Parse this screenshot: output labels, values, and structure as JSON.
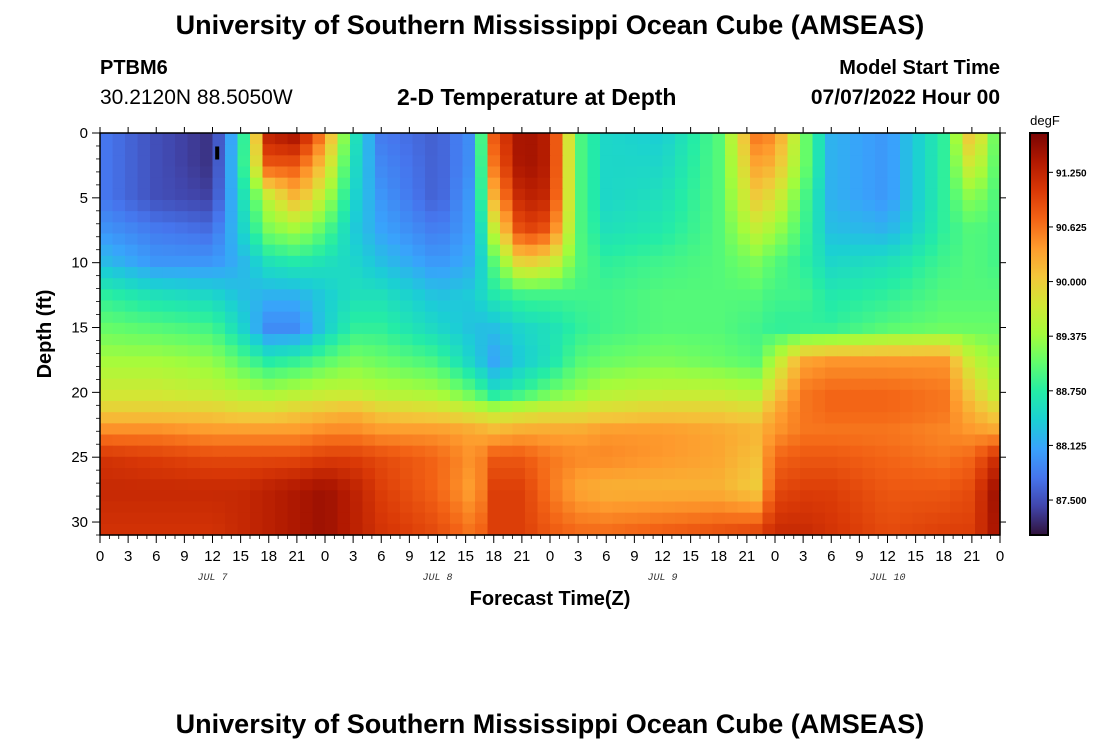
{
  "header": {
    "title": "University of Southern Mississippi Ocean Cube (AMSEAS)",
    "station_id": "PTBM6",
    "station_coords": "30.2120N  88.5050W",
    "plot_title": "2-D Temperature at Depth",
    "model_start_label": "Model Start Time",
    "model_start_value": "07/07/2022 Hour 00"
  },
  "footer": {
    "title": "University of Southern Mississippi Ocean Cube (AMSEAS)"
  },
  "chart_data": {
    "type": "heatmap",
    "title": "2-D Temperature at Depth",
    "xlabel": "Forecast Time(Z)",
    "ylabel": "Depth (ft)",
    "x_range_hours": [
      0,
      96
    ],
    "x_tick_labels": [
      "0",
      "3",
      "6",
      "9",
      "12",
      "15",
      "18",
      "21",
      "0",
      "3",
      "6",
      "9",
      "12",
      "15",
      "18",
      "21",
      "0",
      "3",
      "6",
      "9",
      "12",
      "15",
      "18",
      "21",
      "0",
      "3",
      "6",
      "9",
      "12",
      "15",
      "18",
      "21",
      "0"
    ],
    "x_tick_step_hours": 3,
    "day_labels": [
      {
        "label": "JUL 7",
        "hour": 12
      },
      {
        "label": "JUL 8",
        "hour": 36
      },
      {
        "label": "JUL 9",
        "hour": 60
      },
      {
        "label": "JUL 10",
        "hour": 84
      }
    ],
    "y_range_ft": [
      0,
      31
    ],
    "y_ticks": [
      0,
      5,
      10,
      15,
      20,
      25,
      30
    ],
    "y_tick_labels": [
      "0",
      "5",
      "10",
      "15",
      "20",
      "25",
      "30"
    ],
    "colorbar": {
      "unit": "degF",
      "range": [
        87.1,
        91.7
      ],
      "ticks": [
        87.5,
        88.125,
        88.75,
        89.375,
        90.0,
        90.625,
        91.25
      ],
      "tick_labels": [
        "87.500",
        "88.125",
        "88.750",
        "89.375",
        "90.000",
        "90.625",
        "91.250"
      ],
      "colors": [
        "#30123b",
        "#4145ab",
        "#4675ed",
        "#39a2fc",
        "#1bcfd4",
        "#24eca6",
        "#61fc6c",
        "#a4fc3b",
        "#d1e834",
        "#f3c63a",
        "#fe9b2d",
        "#f36315",
        "#d93806",
        "#b11901",
        "#7a0403"
      ]
    },
    "depths_ft": [
      0,
      2.5,
      5,
      7.5,
      10,
      12.5,
      15,
      17.5,
      20,
      21.5,
      23,
      25,
      27.5,
      31
    ],
    "times_hours": [
      0,
      6,
      12,
      15,
      18,
      21,
      24,
      27,
      30,
      36,
      40,
      42,
      45,
      48,
      51,
      54,
      60,
      66,
      70,
      72,
      75,
      78,
      84,
      90,
      93,
      96
    ],
    "temperature_degF": [
      [
        87.8,
        87.5,
        87.3,
        88.5,
        91.3,
        91.5,
        90.5,
        88.7,
        87.8,
        87.6,
        88.0,
        90.8,
        91.5,
        91.3,
        89.0,
        88.5,
        88.4,
        89.0,
        90.6,
        90.5,
        89.2,
        88.2,
        88.0,
        88.8,
        90.2,
        88.9
      ],
      [
        87.8,
        87.5,
        87.3,
        88.6,
        90.8,
        90.8,
        90.0,
        88.6,
        87.9,
        87.6,
        88.0,
        90.6,
        91.5,
        91.3,
        89.0,
        88.5,
        88.5,
        89.0,
        90.3,
        90.2,
        89.2,
        88.2,
        88.0,
        88.8,
        89.8,
        88.9
      ],
      [
        87.8,
        87.5,
        87.4,
        88.5,
        89.6,
        90.2,
        89.5,
        88.5,
        88.0,
        87.6,
        88.1,
        90.2,
        91.3,
        91.2,
        89.0,
        88.5,
        88.6,
        89.0,
        90.0,
        89.8,
        89.0,
        88.2,
        88.0,
        88.8,
        89.3,
        88.9
      ],
      [
        88.0,
        87.8,
        87.7,
        88.4,
        89.2,
        89.4,
        89.0,
        88.4,
        88.1,
        87.8,
        88.1,
        89.6,
        91.0,
        90.8,
        89.0,
        88.6,
        88.7,
        89.0,
        89.6,
        89.4,
        88.9,
        88.3,
        88.2,
        88.8,
        89.0,
        88.9
      ],
      [
        88.3,
        88.0,
        88.0,
        88.2,
        88.6,
        88.7,
        88.6,
        88.5,
        88.3,
        88.0,
        88.2,
        89.0,
        90.0,
        89.8,
        89.0,
        88.8,
        88.9,
        89.0,
        89.2,
        89.0,
        88.8,
        88.5,
        88.6,
        88.9,
        89.0,
        88.9
      ],
      [
        88.8,
        88.6,
        88.5,
        88.3,
        88.2,
        88.2,
        88.4,
        88.6,
        88.6,
        88.3,
        88.4,
        88.7,
        88.9,
        88.9,
        88.9,
        88.9,
        89.0,
        89.0,
        89.0,
        88.9,
        88.9,
        88.7,
        88.8,
        89.0,
        89.0,
        89.0
      ],
      [
        89.1,
        89.0,
        88.9,
        88.5,
        87.9,
        87.9,
        88.4,
        88.8,
        88.8,
        88.5,
        88.3,
        88.3,
        88.5,
        88.6,
        88.8,
        88.9,
        89.0,
        89.0,
        88.9,
        88.8,
        88.8,
        88.8,
        89.0,
        89.1,
        89.1,
        89.1
      ],
      [
        89.4,
        89.4,
        89.3,
        89.0,
        88.7,
        88.8,
        89.0,
        89.2,
        89.1,
        88.9,
        88.4,
        88.1,
        88.4,
        88.6,
        89.0,
        89.1,
        89.2,
        89.1,
        89.0,
        89.5,
        90.3,
        90.4,
        90.4,
        90.4,
        89.6,
        89.3
      ],
      [
        89.7,
        89.7,
        89.6,
        89.5,
        89.4,
        89.5,
        89.6,
        89.6,
        89.5,
        89.4,
        89.0,
        88.6,
        88.8,
        89.1,
        89.3,
        89.5,
        89.6,
        89.6,
        89.5,
        90.0,
        90.6,
        90.7,
        90.7,
        90.6,
        90.0,
        89.5
      ],
      [
        90.0,
        90.0,
        90.0,
        89.9,
        89.9,
        90.0,
        90.1,
        90.2,
        90.0,
        89.9,
        89.7,
        89.6,
        89.7,
        89.8,
        89.8,
        89.9,
        90.0,
        90.0,
        89.9,
        90.3,
        90.6,
        90.7,
        90.7,
        90.6,
        90.2,
        89.9
      ],
      [
        90.5,
        90.5,
        90.4,
        90.4,
        90.4,
        90.4,
        90.5,
        90.5,
        90.4,
        90.4,
        90.3,
        90.2,
        90.3,
        90.3,
        90.3,
        90.4,
        90.4,
        90.3,
        90.2,
        90.4,
        90.6,
        90.6,
        90.6,
        90.5,
        90.4,
        90.3
      ],
      [
        91.1,
        91.0,
        90.9,
        90.9,
        90.9,
        90.9,
        91.0,
        91.0,
        90.9,
        90.7,
        90.4,
        90.8,
        90.8,
        90.6,
        90.5,
        90.5,
        90.4,
        90.3,
        90.1,
        90.7,
        90.8,
        90.8,
        90.7,
        90.6,
        90.7,
        91.2
      ],
      [
        91.2,
        91.2,
        91.2,
        91.2,
        91.3,
        91.4,
        91.5,
        91.3,
        91.0,
        90.7,
        90.3,
        91.0,
        91.0,
        90.6,
        90.3,
        90.2,
        90.2,
        90.2,
        90.0,
        90.9,
        91.0,
        91.0,
        90.8,
        90.8,
        90.9,
        91.6
      ],
      [
        91.1,
        91.1,
        91.1,
        91.2,
        91.3,
        91.4,
        91.5,
        91.3,
        91.1,
        90.9,
        90.6,
        91.0,
        91.0,
        90.8,
        90.7,
        90.7,
        90.8,
        90.9,
        91.0,
        91.2,
        91.2,
        91.1,
        90.9,
        91.0,
        91.0,
        91.5
      ]
    ],
    "annotations": [
      {
        "type": "marker",
        "shape": "small black bar",
        "hour": 12.5,
        "depth_ft": 0.5
      }
    ]
  }
}
